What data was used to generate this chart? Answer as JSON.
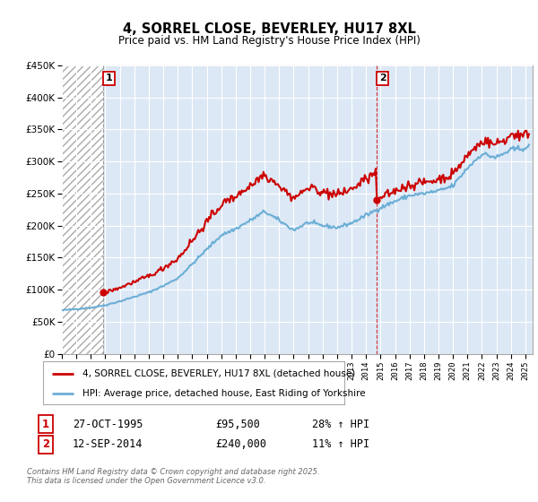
{
  "title": "4, SORREL CLOSE, BEVERLEY, HU17 8XL",
  "subtitle": "Price paid vs. HM Land Registry's House Price Index (HPI)",
  "ylim": [
    0,
    450000
  ],
  "yticks": [
    0,
    50000,
    100000,
    150000,
    200000,
    250000,
    300000,
    350000,
    400000,
    450000
  ],
  "ytick_labels": [
    "£0",
    "£50K",
    "£100K",
    "£150K",
    "£200K",
    "£250K",
    "£300K",
    "£350K",
    "£400K",
    "£450K"
  ],
  "x_start_year": 1993,
  "x_end_year": 2025,
  "sale1_date": 1995.82,
  "sale1_price": 95500,
  "sale1_label": "1",
  "sale1_text": "27-OCT-1995",
  "sale1_amount": "£95,500",
  "sale1_hpi": "28% ↑ HPI",
  "sale2_date": 2014.71,
  "sale2_price": 240000,
  "sale2_label": "2",
  "sale2_text": "12-SEP-2014",
  "sale2_amount": "£240,000",
  "sale2_hpi": "11% ↑ HPI",
  "property_color": "#cc0000",
  "hpi_color": "#6baed6",
  "vline1_color": "#888888",
  "vline2_color": "#cc0000",
  "box_color": "#cc0000",
  "legend_label1": "4, SORREL CLOSE, BEVERLEY, HU17 8XL (detached house)",
  "legend_label2": "HPI: Average price, detached house, East Riding of Yorkshire",
  "footer": "Contains HM Land Registry data © Crown copyright and database right 2025.\nThis data is licensed under the Open Government Licence v3.0.",
  "bg_color": "#ffffff",
  "plot_bg_color": "#dce8f5",
  "grid_color": "#ffffff",
  "hatch_bg": "#e8e8e8"
}
